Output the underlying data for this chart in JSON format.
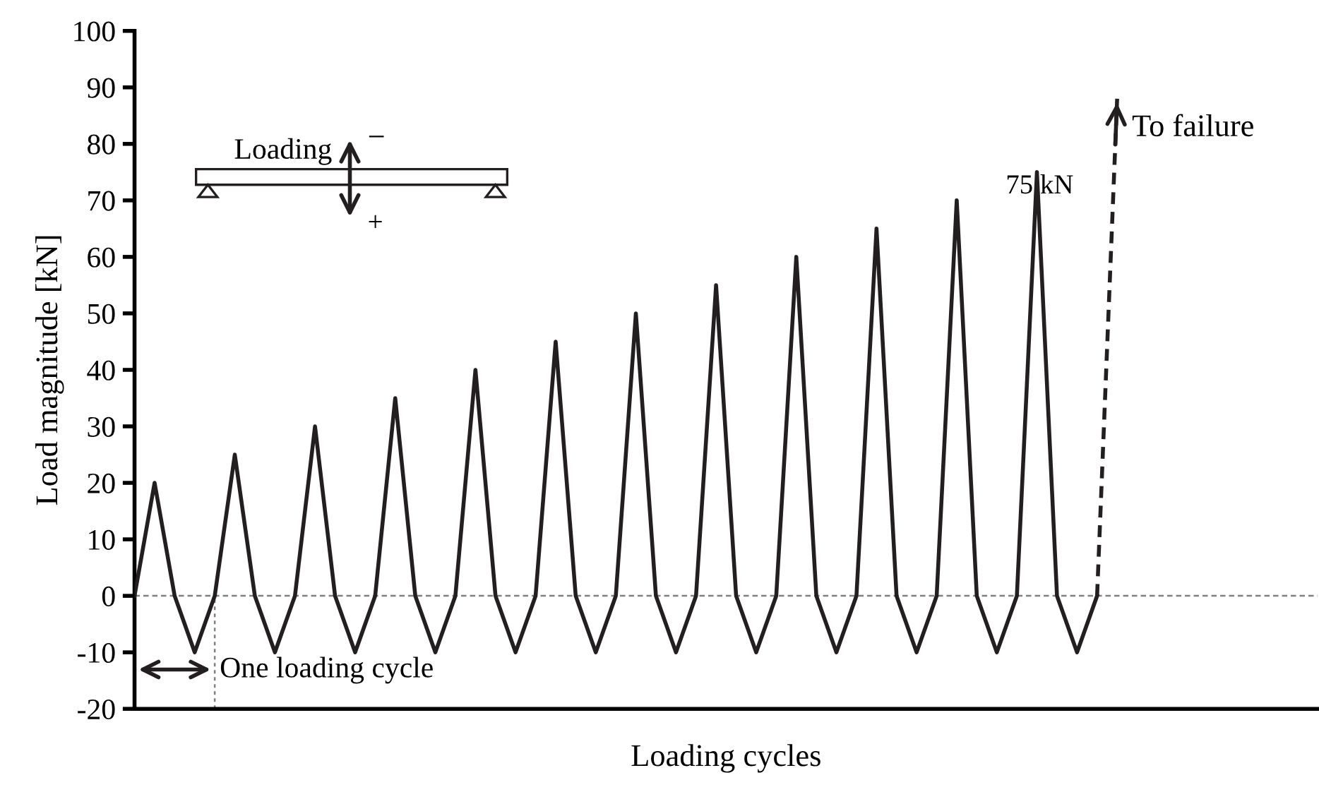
{
  "chart_data": {
    "type": "line",
    "ylabel": "Load magnitude [kN]",
    "xlabel": "Loading cycles",
    "categories": [
      null,
      null,
      null,
      null,
      null,
      null,
      null,
      null,
      null,
      null,
      null,
      null,
      null,
      null,
      null,
      null,
      null,
      null,
      null,
      null,
      null,
      null,
      null,
      null,
      null,
      null,
      null,
      null,
      null,
      null,
      null,
      null,
      null,
      null,
      null,
      null,
      null,
      null,
      null,
      null,
      null,
      null,
      null,
      null,
      null,
      null,
      null,
      null,
      null,
      null,
      null,
      null,
      null,
      null,
      null,
      null,
      null,
      null,
      null,
      null
    ],
    "series": [
      {
        "color": "#231f20",
        "line_style": "solid",
        "values": [
          0,
          20,
          0,
          -10,
          0,
          25,
          0,
          -10,
          0,
          30,
          0,
          -10,
          0,
          35,
          0,
          -10,
          0,
          40,
          0,
          -10,
          0,
          45,
          0,
          -10,
          0,
          50,
          0,
          -10,
          0,
          55,
          0,
          -10,
          0,
          60,
          0,
          -10,
          0,
          65,
          0,
          -10,
          0,
          70,
          0,
          -10,
          0,
          75,
          0,
          -10,
          0,
          null,
          null,
          null,
          null,
          null,
          null,
          null,
          null,
          null,
          null,
          null
        ]
      },
      {
        "color": "#231f20",
        "line_style": "dashed",
        "values": [
          null,
          null,
          null,
          null,
          null,
          null,
          null,
          null,
          null,
          null,
          null,
          null,
          null,
          null,
          null,
          null,
          null,
          null,
          null,
          null,
          null,
          null,
          null,
          null,
          null,
          null,
          null,
          null,
          null,
          null,
          null,
          null,
          null,
          null,
          null,
          null,
          null,
          null,
          null,
          null,
          null,
          null,
          null,
          null,
          null,
          null,
          null,
          null,
          0,
          88,
          null,
          null,
          null,
          null,
          null,
          null,
          null,
          null,
          null,
          null
        ]
      }
    ],
    "ylim": [
      -20,
      100
    ],
    "yticks": [
      -20,
      -10,
      0,
      10,
      20,
      30,
      40,
      50,
      60,
      70,
      80,
      90,
      100
    ],
    "tick_labels": "y",
    "grid": false,
    "legend": false,
    "marker": "none",
    "ref_lines": [
      {
        "axis": "y",
        "value": 0,
        "color": "#808080",
        "line_style": "dashed"
      }
    ],
    "annotations": [
      "Loading",
      "−",
      "+",
      "75 kN",
      "To failure",
      "One loading cycle"
    ]
  }
}
